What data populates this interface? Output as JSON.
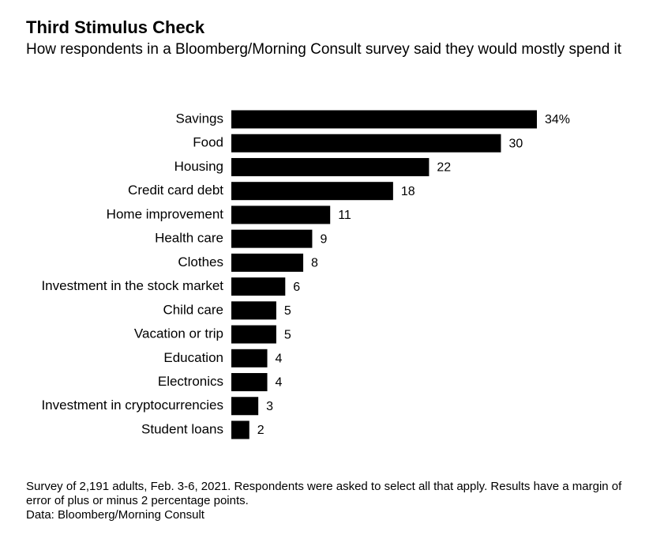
{
  "chart_data": {
    "type": "bar",
    "orientation": "horizontal",
    "title": "Third Stimulus Check",
    "subtitle": "How respondents in a Bloomberg/Morning Consult survey said they would mostly spend it",
    "categories": [
      "Savings",
      "Food",
      "Housing",
      "Credit card debt",
      "Home improvement",
      "Health care",
      "Clothes",
      "Investment in the stock market",
      "Child care",
      "Vacation or trip",
      "Education",
      "Electronics",
      "Investment in cryptocurrencies",
      "Student loans"
    ],
    "values": [
      34,
      30,
      22,
      18,
      11,
      9,
      8,
      6,
      5,
      5,
      4,
      4,
      3,
      2
    ],
    "value_labels": [
      "34%",
      "30",
      "22",
      "18",
      "11",
      "9",
      "8",
      "6",
      "5",
      "5",
      "4",
      "4",
      "3",
      "2"
    ],
    "color": "#000000",
    "note": "Survey of 2,191 adults, Feb. 3-6, 2021. Respondents were asked to select all that apply. Results have a margin of error of plus or minus 2 percentage points.",
    "source": "Data: Bloomberg/Morning Consult"
  }
}
